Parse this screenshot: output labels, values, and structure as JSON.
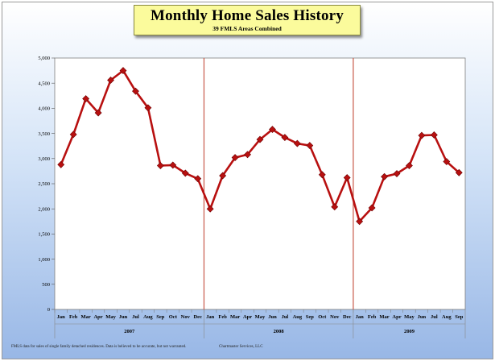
{
  "chart_data": {
    "type": "line",
    "title": "Monthly Home Sales History",
    "subtitle": "39 FMLS Areas Combined",
    "ylim": [
      0,
      5000
    ],
    "yticks": [
      0,
      500,
      1000,
      1500,
      2000,
      2500,
      3000,
      3500,
      4000,
      4500,
      5000
    ],
    "ytick_labels": [
      "0",
      "500",
      "1,000",
      "1,500",
      "2,000",
      "2,500",
      "3,000",
      "3,500",
      "4,000",
      "4,500",
      "5,000"
    ],
    "categories": [
      "Jan",
      "Feb",
      "Mar",
      "Apr",
      "May",
      "Jun",
      "Jul",
      "Aug",
      "Sep",
      "Oct",
      "Nov",
      "Dec",
      "Jan",
      "Feb",
      "Mar",
      "Apr",
      "May",
      "Jun",
      "Jul",
      "Aug",
      "Sep",
      "Oct",
      "Nov",
      "Dec",
      "Jan",
      "Feb",
      "Mar",
      "Apr",
      "May",
      "Jun",
      "Jul",
      "Aug",
      "Sep"
    ],
    "year_groups": [
      {
        "label": "2007",
        "count": 12
      },
      {
        "label": "2008",
        "count": 12
      },
      {
        "label": "2009",
        "count": 9
      }
    ],
    "values": [
      2880,
      3480,
      4190,
      3910,
      4560,
      4750,
      4340,
      4010,
      2860,
      2870,
      2710,
      2600,
      2000,
      2660,
      3020,
      3080,
      3380,
      3580,
      3420,
      3300,
      3260,
      2680,
      2040,
      2620,
      1750,
      2020,
      2640,
      2700,
      2860,
      3460,
      3470,
      2940,
      2720
    ],
    "line_color": "#b81010",
    "marker_color": "#b81010",
    "separator_color": "#c85a4a",
    "grid": false,
    "legend": "none"
  },
  "footnotes": {
    "left": "FMLS data for sales of single family detached residences. Data is believed to be accurate, but not warranted.",
    "right": "Chartmaster Services, LLC"
  }
}
